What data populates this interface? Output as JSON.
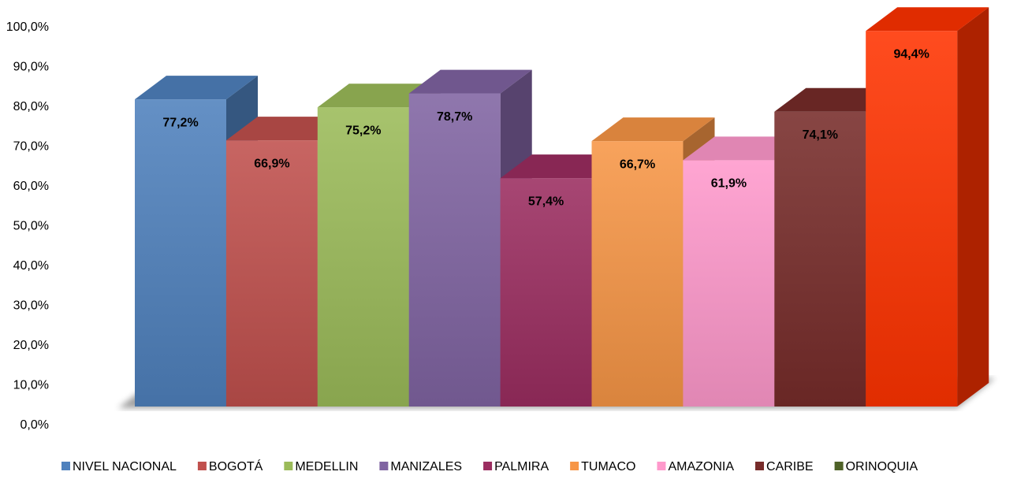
{
  "chart_data": {
    "type": "bar3d",
    "series": [
      {
        "name": "NIVEL NACIONAL",
        "color": "#4f81bd",
        "values": [
          77.2
        ],
        "value_labels": [
          "77,2%"
        ]
      },
      {
        "name": "BOGOTÁ",
        "color": "#c0504d",
        "values": [
          66.9
        ],
        "value_labels": [
          "66,9%"
        ]
      },
      {
        "name": "MEDELLIN",
        "color": "#9bbb59",
        "values": [
          75.2
        ],
        "value_labels": [
          "75,2%"
        ]
      },
      {
        "name": "MANIZALES",
        "color": "#8064a2",
        "values": [
          78.7
        ],
        "value_labels": [
          "78,7%"
        ]
      },
      {
        "name": "PALMIRA",
        "color": "#9b2d60",
        "values": [
          57.4
        ],
        "value_labels": [
          "57,4%"
        ]
      },
      {
        "name": "TUMACO",
        "color": "#f79646",
        "values": [
          66.7
        ],
        "value_labels": [
          "66,7%"
        ]
      },
      {
        "name": "AMAZONIA",
        "color": "#ff99cc",
        "values": [
          61.9
        ],
        "value_labels": [
          "61,9%"
        ]
      },
      {
        "name": "CARIBE",
        "color": "#772c2a",
        "values": [
          74.1
        ],
        "value_labels": [
          "74,1%"
        ]
      },
      {
        "name": "ORINOQUIA",
        "color": "#4f6228",
        "values": [
          null
        ]
      },
      {
        "name": null,
        "color": "#ff3300",
        "values": [
          94.4
        ],
        "value_labels": [
          "94,4%"
        ]
      }
    ],
    "ylim": [
      0,
      100
    ],
    "yticks": [
      {
        "value": 0,
        "label": "0,0%"
      },
      {
        "value": 10,
        "label": "10,0%"
      },
      {
        "value": 20,
        "label": "20,0%"
      },
      {
        "value": 30,
        "label": "30,0%"
      },
      {
        "value": 40,
        "label": "40,0%"
      },
      {
        "value": 50,
        "label": "50,0%"
      },
      {
        "value": 60,
        "label": "60,0%"
      },
      {
        "value": 70,
        "label": "70,0%"
      },
      {
        "value": 80,
        "label": "80,0%"
      },
      {
        "value": 90,
        "label": "90,0%"
      },
      {
        "value": 100,
        "label": "100,0%"
      }
    ],
    "legend": "bottom"
  }
}
